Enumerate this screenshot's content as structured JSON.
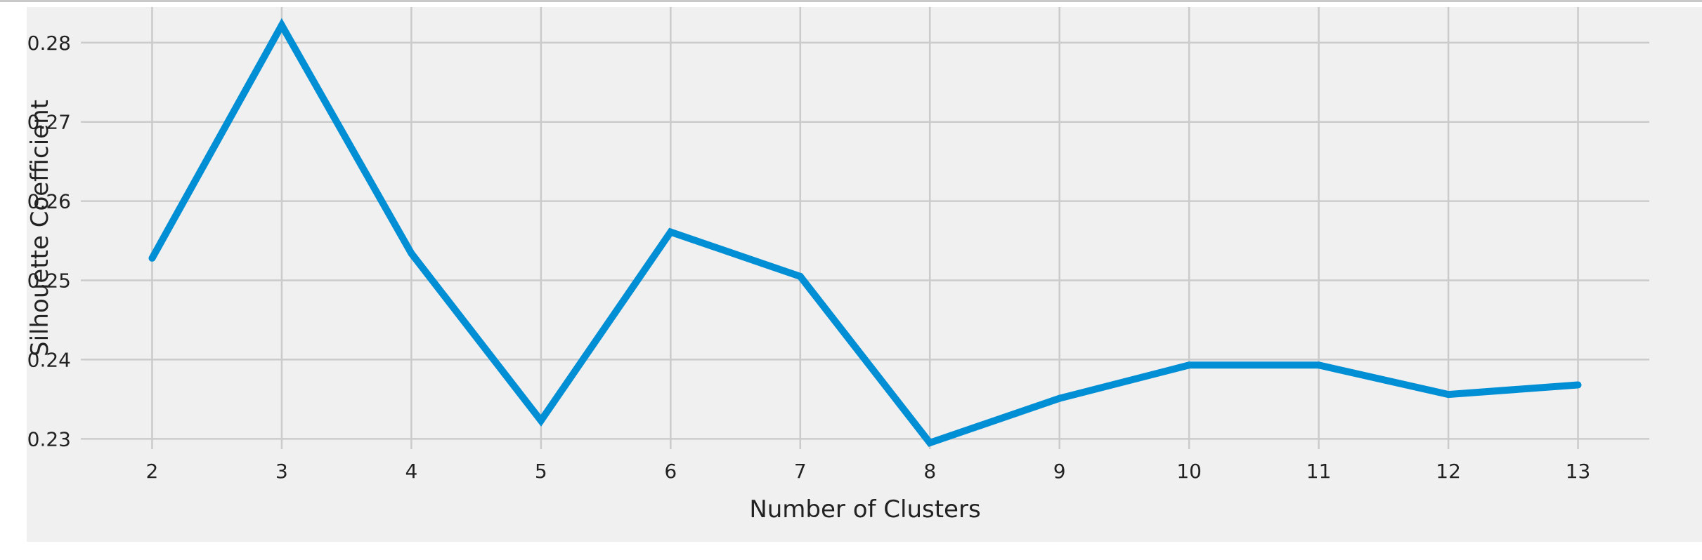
{
  "chart_data": {
    "type": "line",
    "title": "",
    "xlabel": "Number of Clusters",
    "ylabel": "Silhouette Coefficient",
    "x": [
      2,
      3,
      4,
      5,
      6,
      7,
      8,
      9,
      10,
      11,
      12,
      13
    ],
    "series": [
      {
        "values": [
          0.2528,
          0.2822,
          0.2534,
          0.2323,
          0.2561,
          0.2505,
          0.2295,
          0.2351,
          0.2393,
          0.2393,
          0.2356,
          0.2368
        ]
      }
    ],
    "xticks": [
      "2",
      "3",
      "4",
      "5",
      "6",
      "7",
      "8",
      "9",
      "10",
      "11",
      "12",
      "13"
    ],
    "yticks": [
      "0.23",
      "0.24",
      "0.25",
      "0.26",
      "0.27",
      "0.28"
    ],
    "ytick_values": [
      0.23,
      0.24,
      0.25,
      0.26,
      0.27,
      0.28
    ],
    "xlim": [
      1.45,
      13.55
    ],
    "ylim": [
      0.2287,
      0.2845
    ],
    "grid": true,
    "background_color": "#f0f0f0",
    "grid_color": "#cbcbcb",
    "line_color": "#008fd5"
  }
}
